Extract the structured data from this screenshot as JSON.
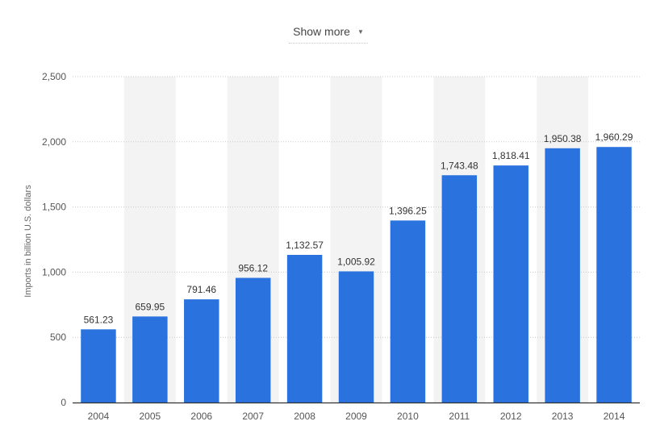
{
  "controls": {
    "show_more_label": "Show more",
    "show_more_icon": "caret-down-icon"
  },
  "chart_data": {
    "type": "bar",
    "title": "",
    "xlabel": "",
    "ylabel": "Imports in billion U.S. dollars",
    "ylim": [
      0,
      2500
    ],
    "yticks": [
      0,
      500,
      1000,
      1500,
      2000,
      2500
    ],
    "ytick_labels": [
      "0",
      "500",
      "1,000",
      "1,500",
      "2,000",
      "2,500"
    ],
    "categories": [
      "2004",
      "2005",
      "2006",
      "2007",
      "2008",
      "2009",
      "2010",
      "2011",
      "2012",
      "2013",
      "2014"
    ],
    "values": [
      561.23,
      659.95,
      791.46,
      956.12,
      1132.57,
      1005.92,
      1396.25,
      1743.48,
      1818.41,
      1950.38,
      1960.29
    ],
    "value_labels": [
      "561.23",
      "659.95",
      "791.46",
      "956.12",
      "1,132.57",
      "1,005.92",
      "1,396.25",
      "1,743.48",
      "1,818.41",
      "1,950.38",
      "1,960.29"
    ],
    "grid": true,
    "alternating_column_bands": true,
    "bar_color": "#2a72de",
    "band_color": "#f3f3f3"
  }
}
